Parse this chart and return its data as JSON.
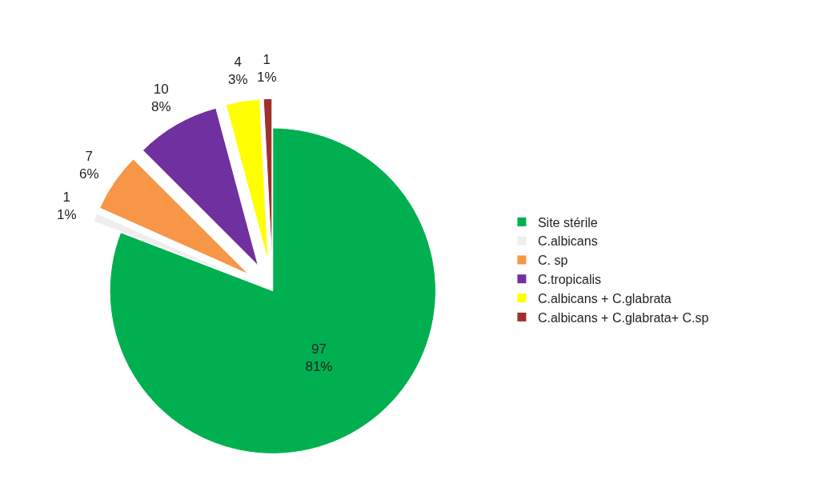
{
  "chart_data": {
    "type": "pie",
    "categories": [
      "Site stérile",
      "C.albicans",
      "C. sp",
      "C.tropicalis",
      "C.albicans + C.glabrata",
      "C.albicans + C.glabrata+ C.sp"
    ],
    "values": [
      97,
      1,
      7,
      10,
      4,
      1
    ],
    "colors": [
      "#00b050",
      "#eeeeee",
      "#f79646",
      "#7030a0",
      "#ffff00",
      "#a0302c"
    ],
    "value_labels": [
      "97\n81%",
      "1\n1%",
      "7\n6%",
      "10\n8%",
      "4\n3%",
      "1\n1%"
    ],
    "legend": "right"
  }
}
